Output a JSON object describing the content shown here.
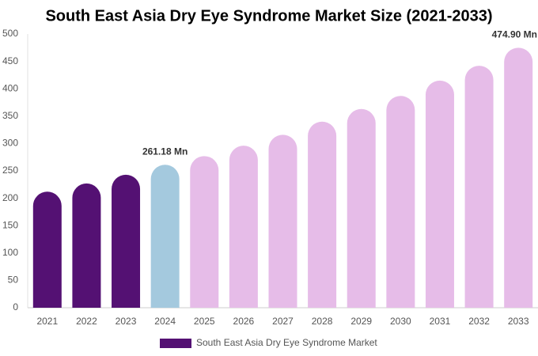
{
  "chart_data": {
    "type": "bar",
    "title": "South East Asia Dry Eye Syndrome Market Size (2021-2033)",
    "categories": [
      "2021",
      "2022",
      "2023",
      "2024",
      "2025",
      "2026",
      "2027",
      "2028",
      "2029",
      "2030",
      "2031",
      "2032",
      "2033"
    ],
    "series": [
      {
        "name": "South East Asia Dry Eye Syndrome Market",
        "color": "#541173",
        "values": [
          212,
          227,
          243,
          261.18,
          277,
          296,
          316,
          340,
          363,
          387,
          415,
          442,
          474.9
        ],
        "value_labels": [
          null,
          null,
          null,
          "261.18 Mn",
          null,
          null,
          null,
          null,
          null,
          null,
          null,
          null,
          "474.90 Mn"
        ],
        "colors": [
          "#541173",
          "#541173",
          "#541173",
          "#a4c9de",
          "#e6bce8",
          "#e6bce8",
          "#e6bce8",
          "#e6bce8",
          "#e6bce8",
          "#e6bce8",
          "#e6bce8",
          "#e6bce8",
          "#e6bce8"
        ]
      }
    ],
    "ylim": [
      0,
      500
    ],
    "yticks": [
      0,
      50,
      100,
      150,
      200,
      250,
      300,
      350,
      400,
      450,
      500
    ],
    "grid": false
  }
}
